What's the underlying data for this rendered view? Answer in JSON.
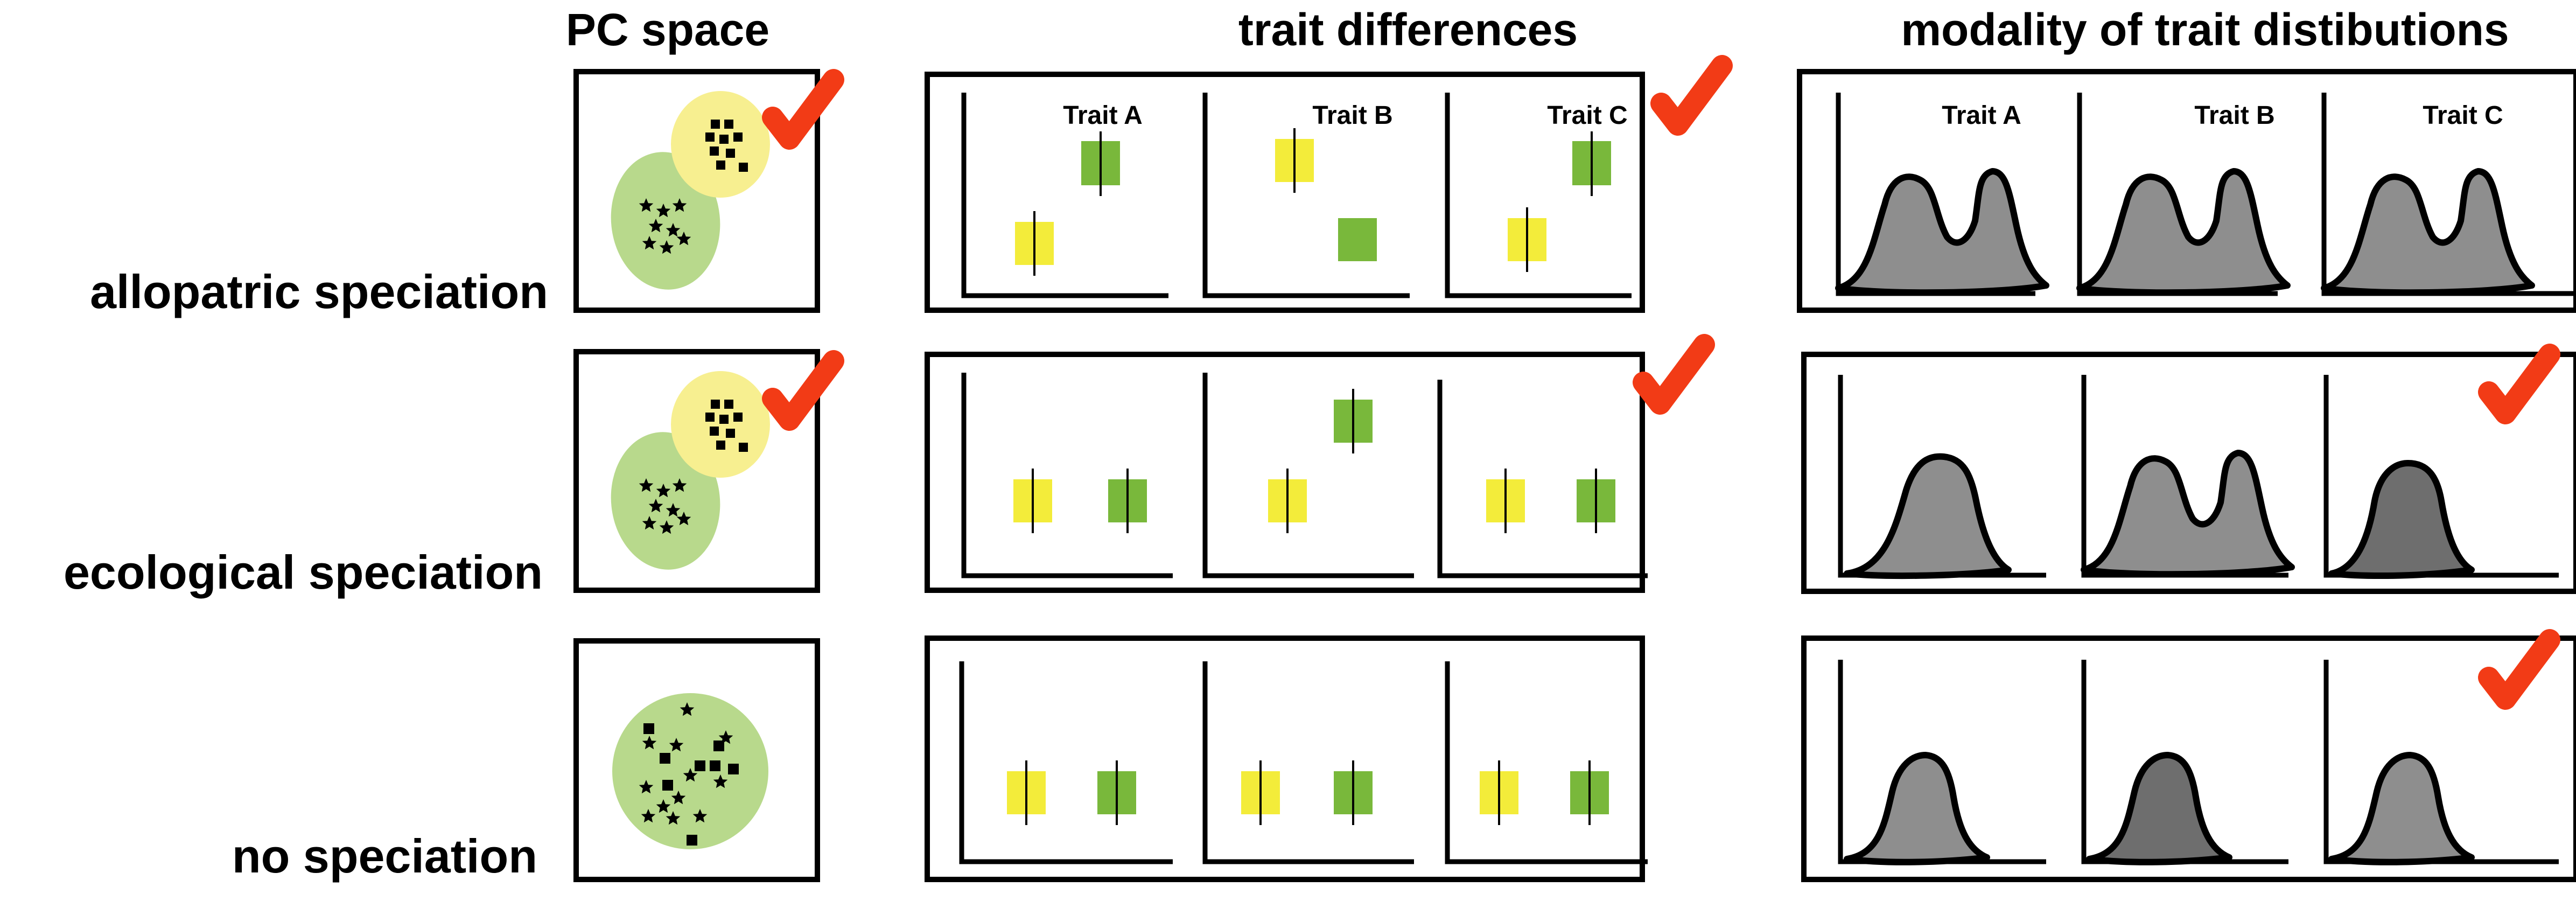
{
  "headers": {
    "pc_space": "PC space",
    "trait_differences": "trait differences",
    "modality": "modality of trait distibutions"
  },
  "rows": [
    {
      "label": "allopatric speciation"
    },
    {
      "label": "ecological speciation"
    },
    {
      "label": "no speciation"
    }
  ],
  "trait_labels": [
    "Trait A",
    "Trait B",
    "Trait C"
  ],
  "colors": {
    "species_yellow": "#f3ec3a",
    "species_green": "#79b83b",
    "pc_yellow": "#f7ef90",
    "pc_green": "#b8d98c",
    "distribution_gray": "#8e8e8e",
    "distribution_dark_gray": "#6e6e6e",
    "checkmark_red": "#f23b16"
  },
  "icons": [
    "checkmark-icon",
    "square-marker-icon",
    "star-marker-icon"
  ]
}
